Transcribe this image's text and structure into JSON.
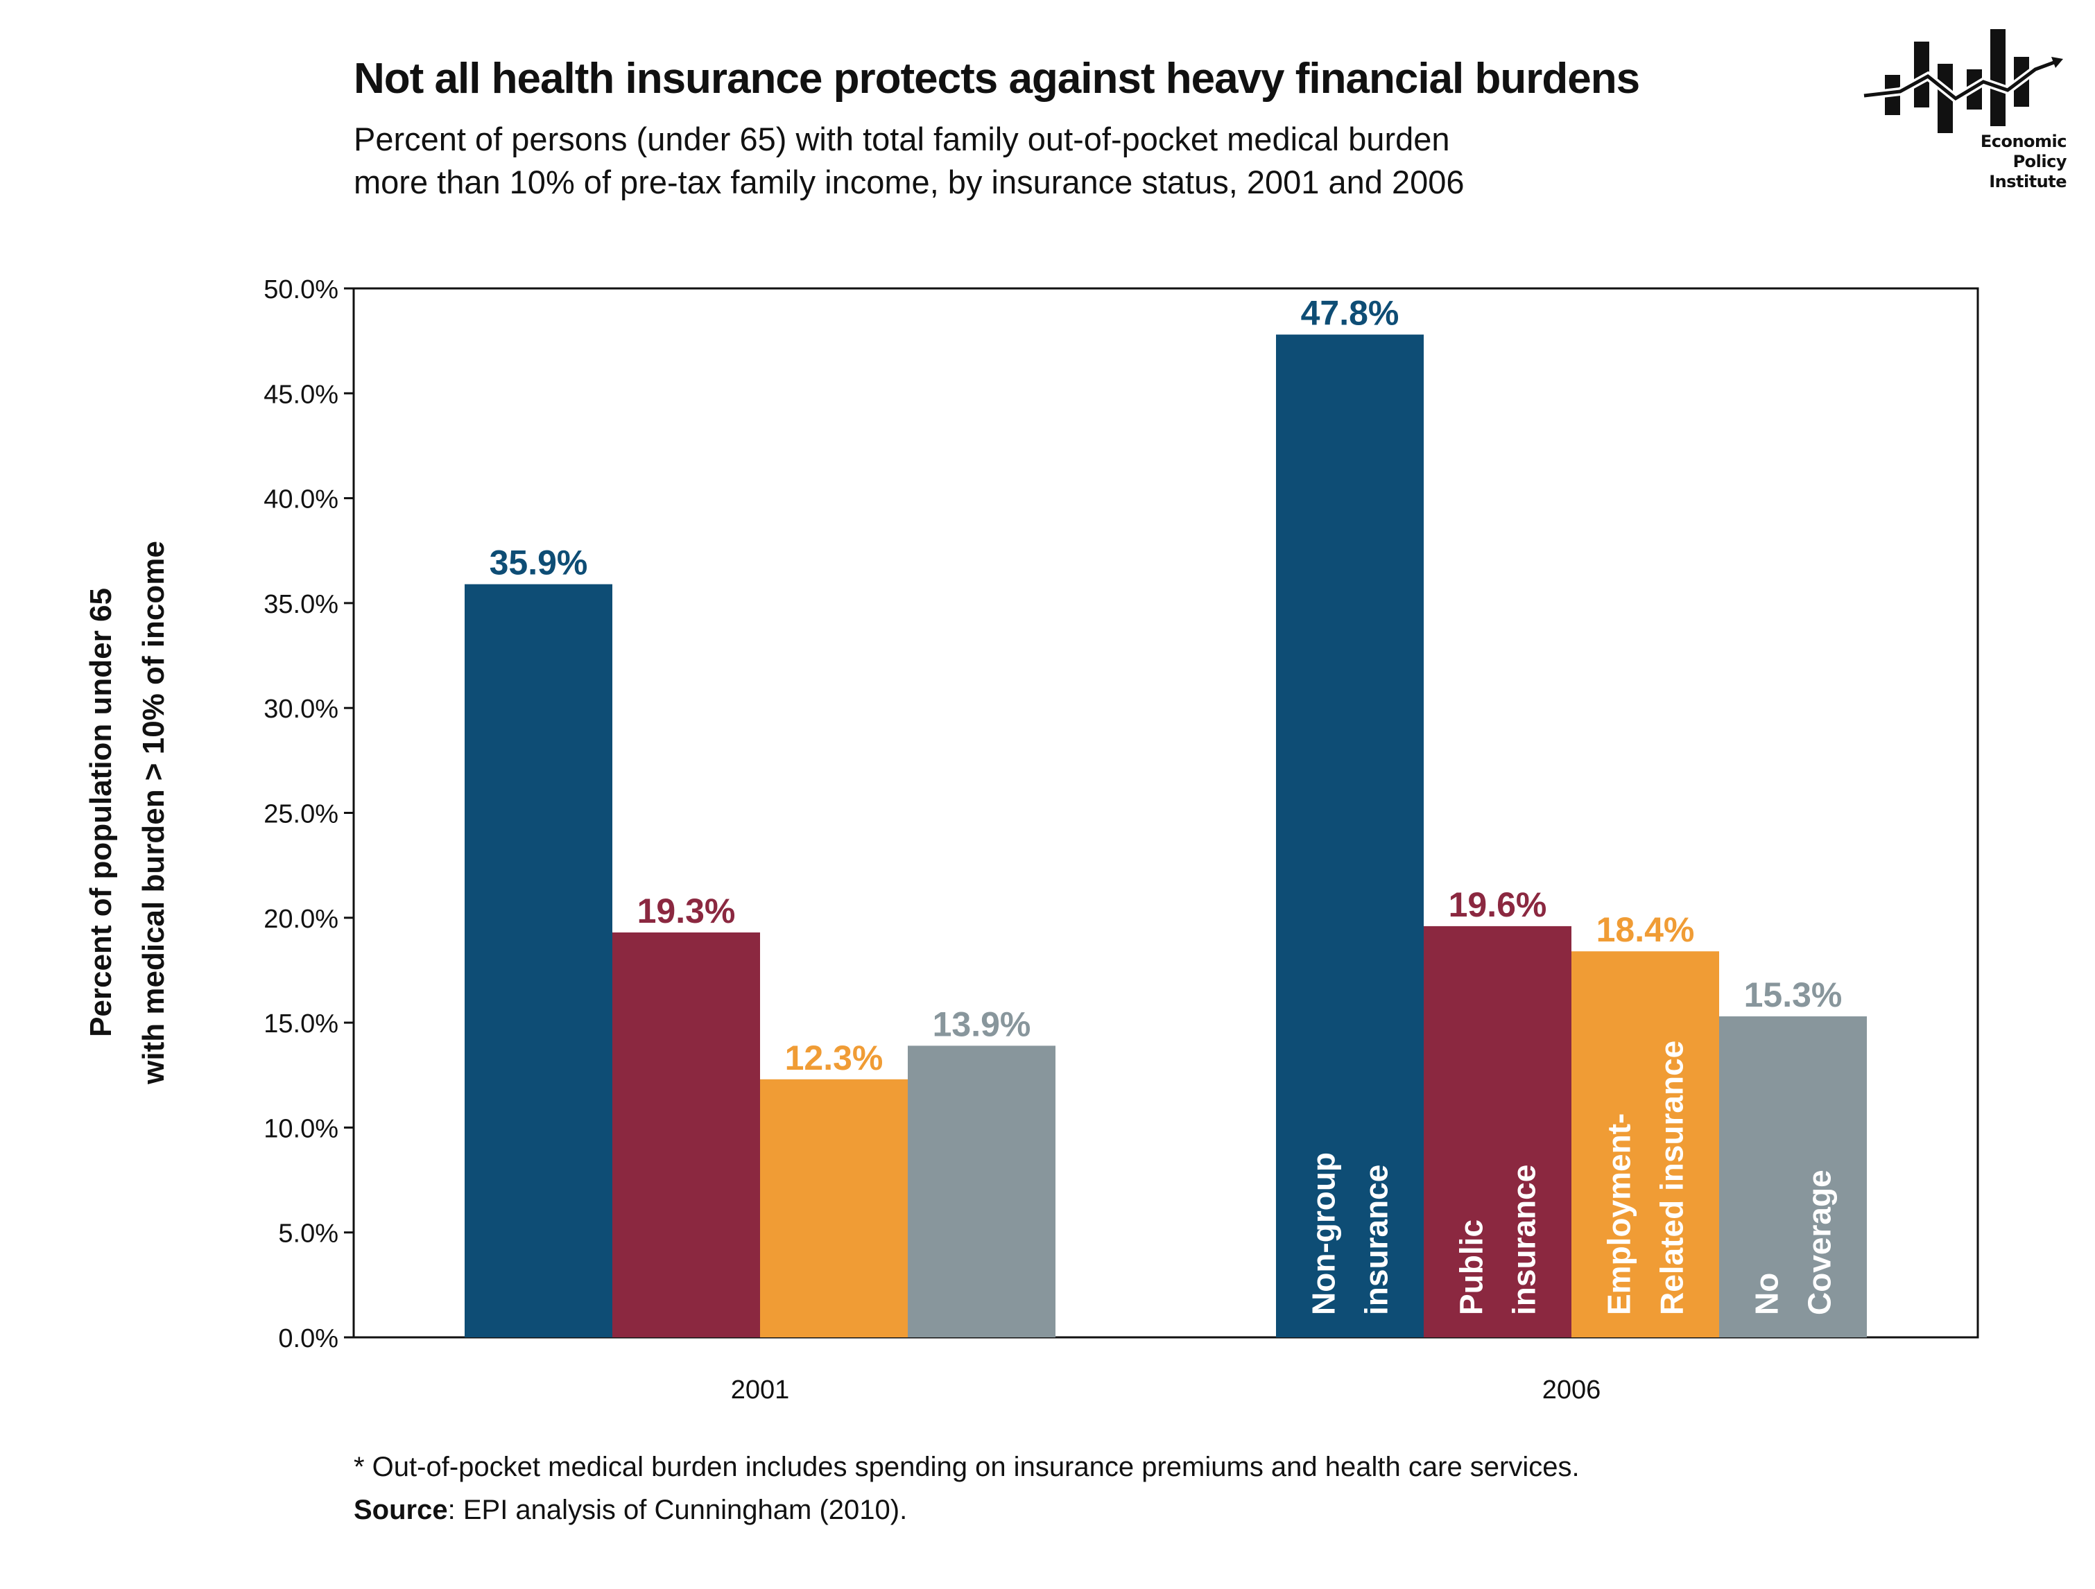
{
  "header": {
    "title": "Not all health insurance protects against heavy financial burdens",
    "subtitle_line1": "Percent of persons (under 65) with total family out-of-pocket medical burden",
    "subtitle_line2": "more than 10% of pre-tax family income, by insurance status, 2001 and 2006"
  },
  "logo": {
    "icon": "epi-bar-chart-logo-icon",
    "line1": "Economic",
    "line2": "Policy",
    "line3": "Institute"
  },
  "chart_data": {
    "type": "bar",
    "title": "",
    "xlabel": "",
    "ylabel": "Percent of population under 65 with medical burden > 10% of income",
    "ylabel_lines": [
      "Percent of population under 65",
      "with medical burden > 10% of income"
    ],
    "ylim": [
      0,
      50
    ],
    "yticks": [
      "0.0%",
      "5.0%",
      "10.0%",
      "15.0%",
      "20.0%",
      "25.0%",
      "30.0%",
      "35.0%",
      "40.0%",
      "45.0%",
      "50.0%"
    ],
    "ytick_values": [
      0,
      5,
      10,
      15,
      20,
      25,
      30,
      35,
      40,
      45,
      50
    ],
    "categories": [
      "2001",
      "2006"
    ],
    "grid": false,
    "legend": "in-bar labels on 2006 bars",
    "series": [
      {
        "name": "Non-group insurance",
        "label_lines": [
          "Non-group",
          "insurance"
        ],
        "color": "#0e4d75",
        "values": [
          35.9,
          47.8
        ],
        "data_labels": [
          "35.9%",
          "47.8%"
        ]
      },
      {
        "name": "Public insurance",
        "label_lines": [
          "Public",
          "insurance"
        ],
        "color": "#8b2840",
        "values": [
          19.3,
          19.6
        ],
        "data_labels": [
          "19.3%",
          "19.6%"
        ]
      },
      {
        "name": "Employment-Related insurance",
        "label_lines": [
          "Employment-",
          "Related insurance"
        ],
        "color": "#f09c35",
        "values": [
          12.3,
          18.4
        ],
        "data_labels": [
          "12.3%",
          "18.4%"
        ]
      },
      {
        "name": "No Coverage",
        "label_lines": [
          "No",
          "Coverage"
        ],
        "color": "#88969c",
        "values": [
          13.9,
          15.3
        ],
        "data_labels": [
          "13.9%",
          "15.3%"
        ]
      }
    ]
  },
  "footnote": {
    "note": "* Out-of-pocket medical burden includes spending on insurance premiums and health care services.",
    "source_label": "Source",
    "source_text": ": EPI analysis of Cunningham (2010)."
  }
}
